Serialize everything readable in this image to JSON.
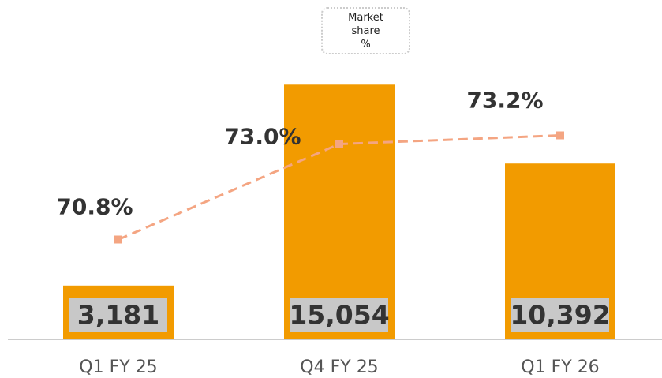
{
  "chart_data": {
    "type": "bar",
    "categories": [
      "Q1 FY 25",
      "Q4 FY 25",
      "Q1 FY 26"
    ],
    "series": [
      {
        "type": "bar",
        "color": "#f29b00",
        "values": [
          3181,
          15054,
          10392
        ],
        "value_labels": [
          "3,181",
          "15,054",
          "10,392"
        ]
      },
      {
        "type": "line",
        "name": "Market share %",
        "color": "#f4a582",
        "axis": "y2",
        "values": [
          70.8,
          73.0,
          73.2
        ],
        "value_labels": [
          "70.8%",
          "73.0%",
          "73.2%"
        ]
      }
    ],
    "ylim": [
      0,
      16000
    ],
    "y2lim": [
      68.5,
      74.5
    ]
  }
}
